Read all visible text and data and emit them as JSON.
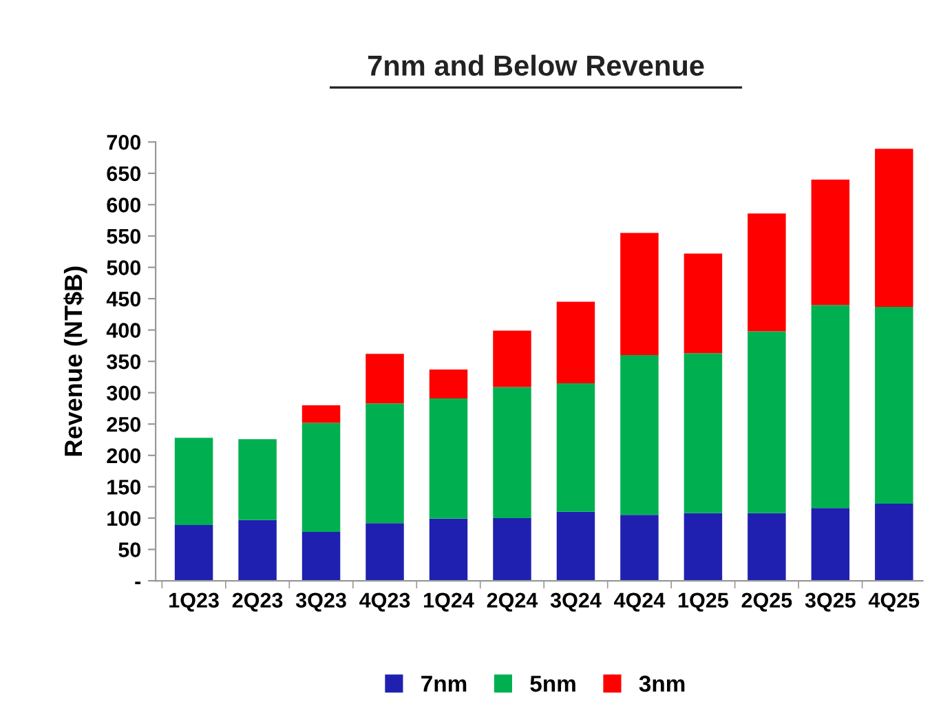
{
  "chart_data": {
    "type": "bar",
    "title": "7nm and Below Revenue",
    "ylabel": "Revenue (NT$B)",
    "categories": [
      "1Q23",
      "2Q23",
      "3Q23",
      "4Q23",
      "1Q24",
      "2Q24",
      "3Q24",
      "4Q24",
      "1Q25",
      "2Q25",
      "3Q25",
      "4Q25"
    ],
    "stacked": true,
    "series": [
      {
        "name": "7nm",
        "color": "#2020b0",
        "values": [
          89,
          97,
          78,
          92,
          99,
          100,
          110,
          105,
          108,
          108,
          116,
          123
        ]
      },
      {
        "name": "5nm",
        "color": "#00b050",
        "values": [
          139,
          129,
          174,
          191,
          192,
          209,
          205,
          255,
          255,
          290,
          324,
          314
        ]
      },
      {
        "name": "3nm",
        "color": "#ff0000",
        "values": [
          null,
          null,
          28,
          79,
          46,
          90,
          130,
          195,
          159,
          188,
          200,
          252
        ]
      }
    ],
    "ylim": [
      0,
      700
    ],
    "yticks": [
      {
        "value": 0,
        "label": "-"
      },
      50,
      100,
      150,
      200,
      250,
      300,
      350,
      400,
      450,
      500,
      550,
      600,
      650,
      700
    ],
    "grid": false,
    "legend": "bottom"
  }
}
